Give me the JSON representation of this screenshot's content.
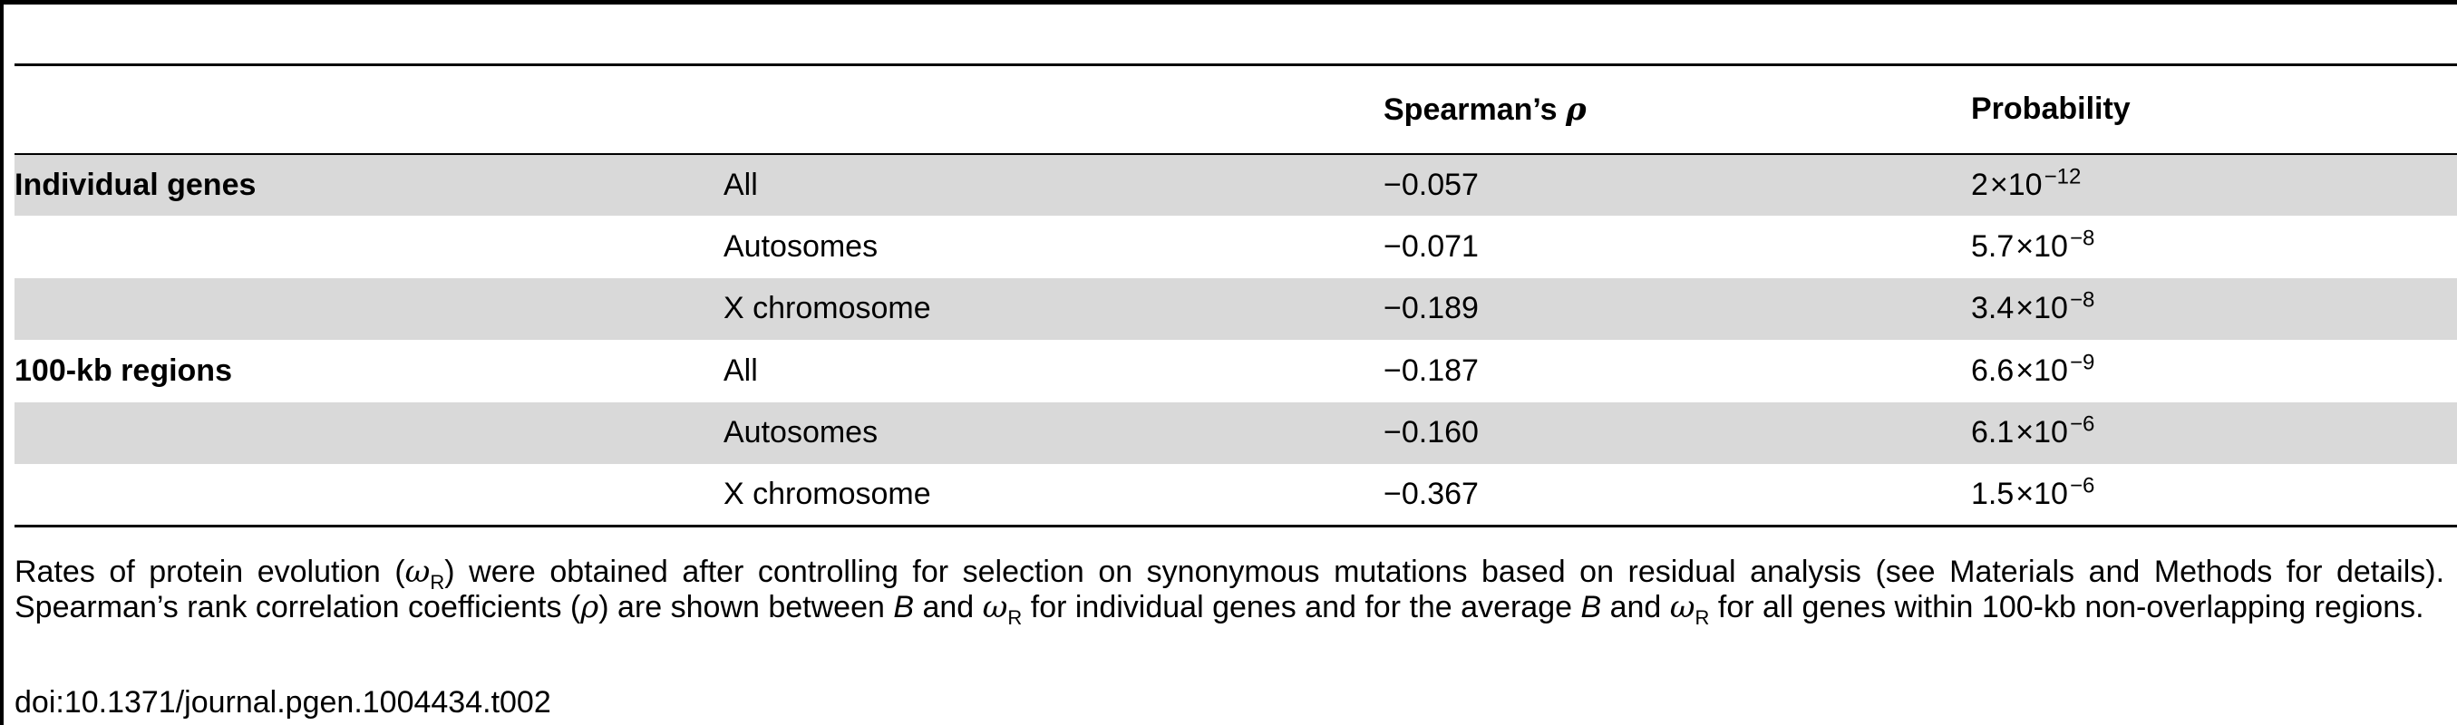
{
  "table": {
    "headers": [
      "",
      "",
      "Spearman’s ρ",
      "Probability"
    ],
    "rows": [
      {
        "group": "Individual genes",
        "subset": "All",
        "rho": "−0.057",
        "p_mantissa": "2",
        "p_exponent": "−12",
        "shaded": true
      },
      {
        "group": "",
        "subset": "Autosomes",
        "rho": "−0.071",
        "p_mantissa": "5.7",
        "p_exponent": "−8",
        "shaded": false
      },
      {
        "group": "",
        "subset": "X chromosome",
        "rho": "−0.189",
        "p_mantissa": "3.4",
        "p_exponent": "−8",
        "shaded": true
      },
      {
        "group": "100-kb regions",
        "subset": "All",
        "rho": "−0.187",
        "p_mantissa": "6.6",
        "p_exponent": "−9",
        "shaded": false
      },
      {
        "group": "",
        "subset": "Autosomes",
        "rho": "−0.160",
        "p_mantissa": "6.1",
        "p_exponent": "−6",
        "shaded": true
      },
      {
        "group": "",
        "subset": "X chromosome",
        "rho": "−0.367",
        "p_mantissa": "1.5",
        "p_exponent": "−6",
        "shaded": false
      }
    ],
    "times_symbol": "×10"
  },
  "footnote": {
    "s1": "Rates of protein evolution (",
    "omega": "ω",
    "omega_sub": "R",
    "s2": ") were obtained after controlling for selection on synonymous mutations based on residual analysis (see Materials and Methods for details). Spearman’s rank correlation coefficients (",
    "rho": "ρ",
    "s3": ") are shown between ",
    "b": "B",
    "s4": " and ",
    "s5": " for individual genes and for the average ",
    "s6": " and ",
    "s7": " for all genes within 100-kb non-overlapping regions."
  },
  "doi": "doi:10.1371/journal.pgen.1004434.t002"
}
